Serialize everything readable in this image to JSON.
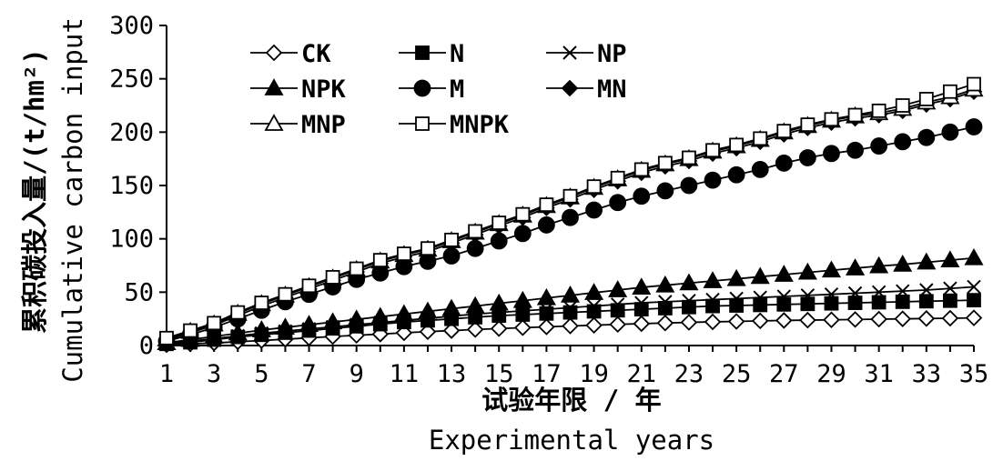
{
  "chart_data": {
    "type": "line",
    "x": [
      1,
      2,
      3,
      4,
      5,
      6,
      7,
      8,
      9,
      10,
      11,
      12,
      13,
      14,
      15,
      16,
      17,
      18,
      19,
      20,
      21,
      22,
      23,
      24,
      25,
      26,
      27,
      28,
      29,
      30,
      31,
      32,
      33,
      34,
      35
    ],
    "x_ticks": [
      1,
      3,
      5,
      7,
      9,
      11,
      13,
      15,
      17,
      19,
      21,
      23,
      25,
      27,
      29,
      31,
      33,
      35
    ],
    "y_ticks": [
      0,
      50,
      100,
      150,
      200,
      250,
      300
    ],
    "ylim": [
      0,
      300
    ],
    "xlim": [
      1,
      35
    ],
    "ylabel_cn": "累积碳投入量",
    "ylabel_unit": "/(t/hm²)",
    "ylabel_en": "Cumulative carbon input",
    "xlabel_cn": "试验年限 / 年",
    "xlabel_en": "Experimental years",
    "grid": false,
    "legend_position": "top-left",
    "series": [
      {
        "name": "CK",
        "marker": "diamond-open",
        "values": [
          0.8,
          1.6,
          2.4,
          3.5,
          4.7,
          5.9,
          7.2,
          8.4,
          9.6,
          10.7,
          11.9,
          13.0,
          14.0,
          15.0,
          15.9,
          16.7,
          17.5,
          18.3,
          19.0,
          19.8,
          20.5,
          21.1,
          21.7,
          22.2,
          22.6,
          23.1,
          23.5,
          23.8,
          24.1,
          24.4,
          24.7,
          25.0,
          25.3,
          25.6,
          25.9
        ]
      },
      {
        "name": "N",
        "marker": "square-filled",
        "values": [
          1.5,
          3.0,
          5.5,
          8.0,
          10.0,
          12.0,
          14.0,
          16.0,
          18.0,
          20.0,
          22.0,
          23.5,
          25.0,
          26.5,
          28.0,
          29.0,
          30.0,
          31.0,
          32.0,
          33.0,
          34.0,
          35.0,
          36.0,
          37.0,
          37.5,
          38.0,
          38.5,
          39.0,
          39.5,
          40.0,
          40.5,
          41.0,
          41.5,
          42.0,
          42.5
        ]
      },
      {
        "name": "NP",
        "marker": "x",
        "values": [
          2.0,
          4.0,
          6.5,
          9.0,
          11.5,
          13.5,
          15.5,
          17.5,
          19.5,
          21.5,
          23.5,
          25.5,
          27.5,
          29.5,
          31.0,
          32.5,
          34.0,
          35.5,
          37.0,
          38.5,
          40.0,
          41.0,
          42.0,
          43.0,
          44.0,
          45.0,
          46.0,
          47.0,
          48.0,
          49.0,
          50.0,
          51.0,
          52.0,
          53.5,
          55.0
        ]
      },
      {
        "name": "NPK",
        "marker": "triangle-filled",
        "values": [
          2.5,
          5.5,
          8.5,
          11.5,
          14.5,
          17.0,
          19.5,
          22.0,
          24.5,
          27.0,
          29.5,
          32.0,
          34.5,
          37.0,
          39.5,
          42.0,
          44.5,
          47.0,
          49.5,
          52.0,
          54.5,
          56.5,
          58.5,
          60.5,
          62.5,
          64.5,
          66.5,
          68.5,
          70.5,
          72.5,
          74.5,
          76.0,
          78.0,
          80.0,
          82.0
        ]
      },
      {
        "name": "M",
        "marker": "circle-filled",
        "values": [
          4,
          10,
          17,
          25,
          33,
          41,
          48,
          55,
          62,
          68,
          74,
          79,
          84,
          91,
          98,
          105,
          113,
          120,
          127,
          134,
          140,
          145,
          150,
          155,
          160,
          165,
          171,
          176,
          180,
          183,
          187,
          191,
          195,
          200,
          205
        ]
      },
      {
        "name": "MN",
        "marker": "diamond-filled",
        "values": [
          5,
          12,
          19,
          28,
          37,
          45,
          53,
          61,
          69,
          77,
          83,
          88,
          96,
          104,
          112,
          120,
          129,
          137,
          146,
          154,
          162,
          168,
          173,
          180,
          185,
          191,
          198,
          204,
          209,
          213,
          216,
          220,
          226,
          231,
          238
        ]
      },
      {
        "name": "MNP",
        "marker": "triangle-open",
        "values": [
          6,
          13,
          20,
          30,
          39,
          47,
          55,
          63,
          71,
          79,
          85,
          90,
          98,
          106,
          114,
          122,
          131,
          139,
          148,
          156,
          164,
          170,
          175,
          182,
          187,
          193,
          200,
          206,
          211,
          215,
          218,
          222,
          228,
          233,
          240
        ]
      },
      {
        "name": "MNPK",
        "marker": "square-open",
        "values": [
          7,
          14,
          21,
          31,
          40,
          48,
          56,
          64,
          72,
          80,
          86,
          91,
          99,
          107,
          115,
          123,
          132,
          140,
          149,
          157,
          165,
          171,
          176,
          183,
          188,
          194,
          201,
          207,
          212,
          216,
          220,
          225,
          231,
          238,
          245
        ]
      }
    ]
  }
}
